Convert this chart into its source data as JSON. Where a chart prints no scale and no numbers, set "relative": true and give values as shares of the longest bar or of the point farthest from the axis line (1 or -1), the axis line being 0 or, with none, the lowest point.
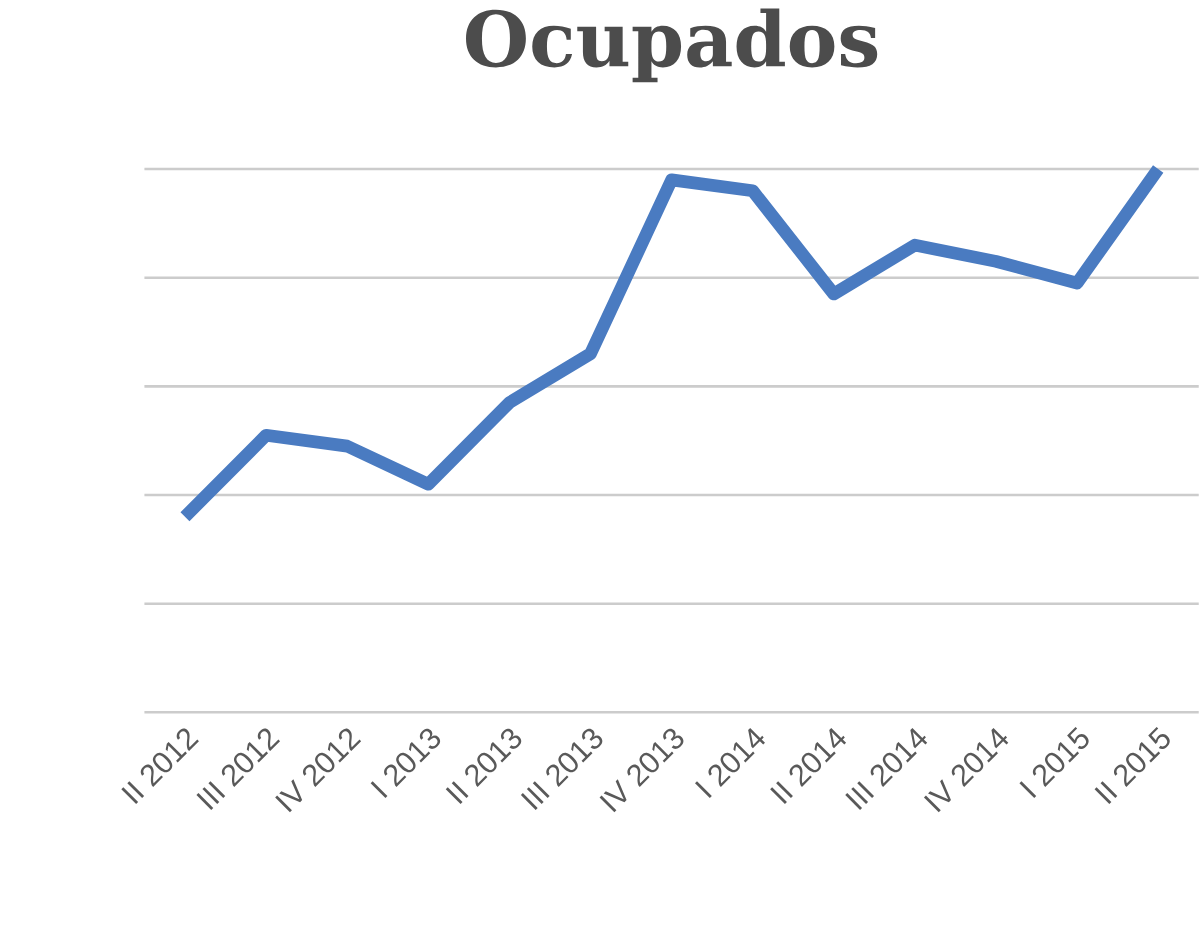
{
  "chart_data": {
    "type": "line",
    "title": "Ocupados",
    "relative": true,
    "grid": "y",
    "color": "#4a7bc1",
    "categories": [
      "II 2012",
      "III 2012",
      "IV 2012",
      "I 2013",
      "II 2013",
      "III 2013",
      "IV 2013",
      "I 2014",
      "II 2014",
      "III 2014",
      "IV 2014",
      "I 2015",
      "II 2015"
    ],
    "values": [
      0.36,
      0.51,
      0.49,
      0.42,
      0.57,
      0.66,
      0.98,
      0.96,
      0.77,
      0.86,
      0.83,
      0.79,
      1.0
    ]
  }
}
